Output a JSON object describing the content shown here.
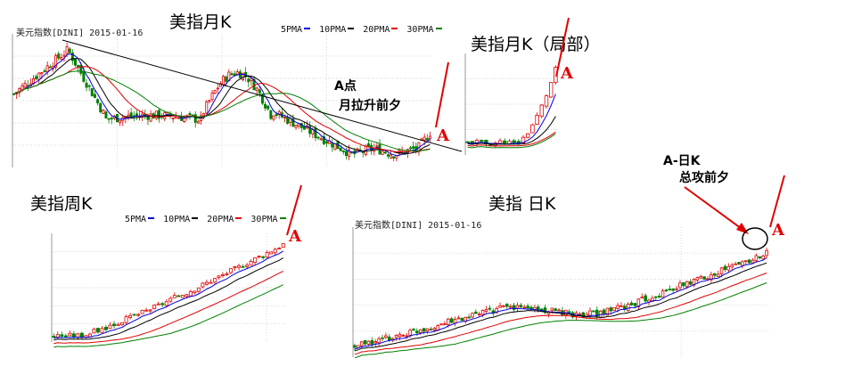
{
  "captions": {
    "monthly": "美指月K",
    "monthly_local": "美指月K（局部）",
    "weekly": "美指周K",
    "daily": "美指 日K"
  },
  "headers": {
    "monthly": "美元指数[DINI] 2015-01-16",
    "daily": "美元指数[DINI] 2015-01-16"
  },
  "legend": [
    "5PMA",
    "10PMA",
    "20PMA",
    "30PMA"
  ],
  "annotations": {
    "point_a": "A点",
    "month_eve": "月拉升前夕",
    "day_k": "A-日K",
    "assault_eve": "总攻前夕",
    "marker": "A"
  },
  "colors": {
    "up_candle": "#e00000",
    "down_candle": "#008000",
    "ma5": "#0000e0",
    "ma10": "#000000",
    "ma20": "#e00000",
    "ma30": "#008000",
    "grid": "#c8c8c8"
  },
  "chart_data": [
    {
      "type": "candlestick",
      "title": "美指月K",
      "series": [
        {
          "name": "5PMA"
        },
        {
          "name": "10PMA"
        },
        {
          "name": "20PMA"
        },
        {
          "name": "30PMA"
        }
      ],
      "annotations": [
        "A点",
        "月拉升前夕",
        "A"
      ],
      "trend": "peak early, long decline along a falling trendline, breakout at A"
    },
    {
      "type": "candlestick",
      "title": "美指月K（局部）",
      "annotations": [
        "A"
      ],
      "trend": "flat base then sharp rally"
    },
    {
      "type": "candlestick",
      "title": "美指周K",
      "series": [
        {
          "name": "5PMA"
        },
        {
          "name": "10PMA"
        },
        {
          "name": "20PMA"
        },
        {
          "name": "30PMA"
        }
      ],
      "annotations": [
        "A"
      ],
      "trend": "steady uptrend"
    },
    {
      "type": "candlestick",
      "title": "美指 日K",
      "series": [
        {
          "name": "5PMA"
        },
        {
          "name": "10PMA"
        },
        {
          "name": "20PMA"
        },
        {
          "name": "30PMA"
        }
      ],
      "annotations": [
        "A-日K",
        "总攻前夕",
        "A"
      ],
      "trend": "gradual uptrend with consolidation"
    }
  ]
}
